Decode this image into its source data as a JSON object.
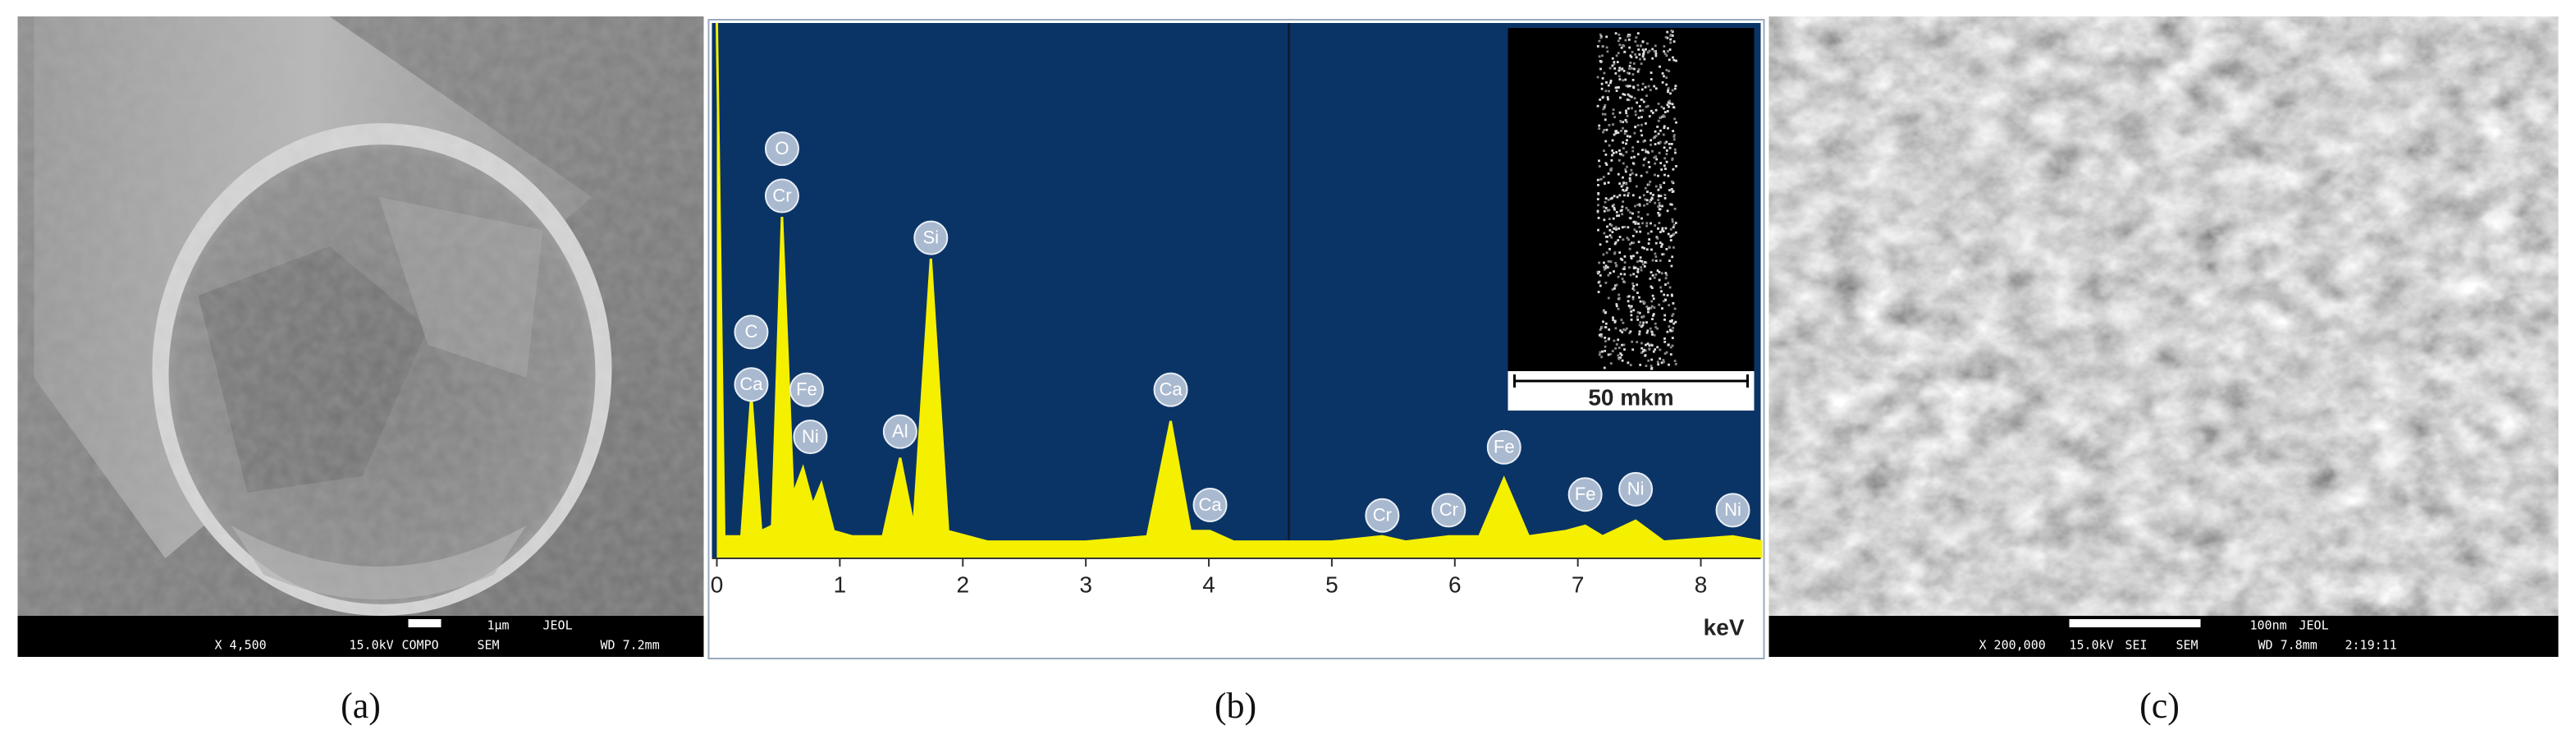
{
  "panels": [
    {
      "caption": "(a)",
      "scale_bar": "1µm",
      "maker": "JEOL",
      "info": [
        "X 4,500",
        "15.0kV",
        "COMPO",
        "SEM",
        "WD 7.2mm"
      ]
    },
    {
      "caption": "(b)",
      "chart_data": {
        "type": "area",
        "x_label": "keV",
        "x": [
          0,
          0.06,
          0.2,
          0.28,
          0.36,
          0.45,
          0.53,
          0.62,
          0.7,
          0.78,
          0.85,
          0.95,
          1.1,
          1.35,
          1.49,
          1.6,
          1.74,
          1.88,
          2.2,
          3.0,
          3.5,
          3.69,
          3.85,
          4.01,
          4.2,
          5.0,
          5.41,
          5.6,
          5.95,
          6.2,
          6.4,
          6.6,
          6.9,
          7.06,
          7.2,
          7.47,
          7.7,
          8.26,
          8.5
        ],
        "values": [
          100,
          2,
          2,
          29,
          3,
          4,
          63,
          10,
          15,
          8,
          12,
          3,
          2,
          2,
          17,
          4,
          55,
          3,
          1,
          1,
          2,
          24,
          3,
          3,
          1,
          1,
          2,
          1,
          2,
          2,
          13,
          2,
          3,
          4,
          2,
          5,
          1,
          2,
          1
        ],
        "color": "#f5f000",
        "background": "#0b3466",
        "xlim": [
          0,
          8.5
        ],
        "ylim": [
          0,
          100
        ],
        "xticks": [
          0,
          1,
          2,
          3,
          4,
          5,
          6,
          7,
          8
        ],
        "cursor_x": 4.65,
        "annotations": [
          {
            "label": "O",
            "x": 0.53,
            "y": 76
          },
          {
            "label": "Cr",
            "x": 0.53,
            "y": 67
          },
          {
            "label": "C",
            "x": 0.28,
            "y": 41
          },
          {
            "label": "Ca",
            "x": 0.28,
            "y": 31
          },
          {
            "label": "Fe",
            "x": 0.73,
            "y": 30
          },
          {
            "label": "Ni",
            "x": 0.76,
            "y": 21
          },
          {
            "label": "Al",
            "x": 1.49,
            "y": 22
          },
          {
            "label": "Si",
            "x": 1.74,
            "y": 59
          },
          {
            "label": "Ca",
            "x": 3.69,
            "y": 30
          },
          {
            "label": "Ca",
            "x": 4.01,
            "y": 8
          },
          {
            "label": "Cr",
            "x": 5.41,
            "y": 6
          },
          {
            "label": "Cr",
            "x": 5.95,
            "y": 7
          },
          {
            "label": "Fe",
            "x": 6.4,
            "y": 19
          },
          {
            "label": "Fe",
            "x": 7.06,
            "y": 10
          },
          {
            "label": "Ni",
            "x": 7.47,
            "y": 11
          },
          {
            "label": "Ni",
            "x": 8.26,
            "y": 7
          }
        ],
        "inset_scale": "50 mkm"
      }
    },
    {
      "caption": "(c)",
      "scale_bar": "100nm",
      "maker": "JEOL",
      "info": [
        "X 200,000",
        "15.0kV",
        "SEI",
        "SEM",
        "WD 7.8mm",
        "2:19:11"
      ]
    }
  ]
}
